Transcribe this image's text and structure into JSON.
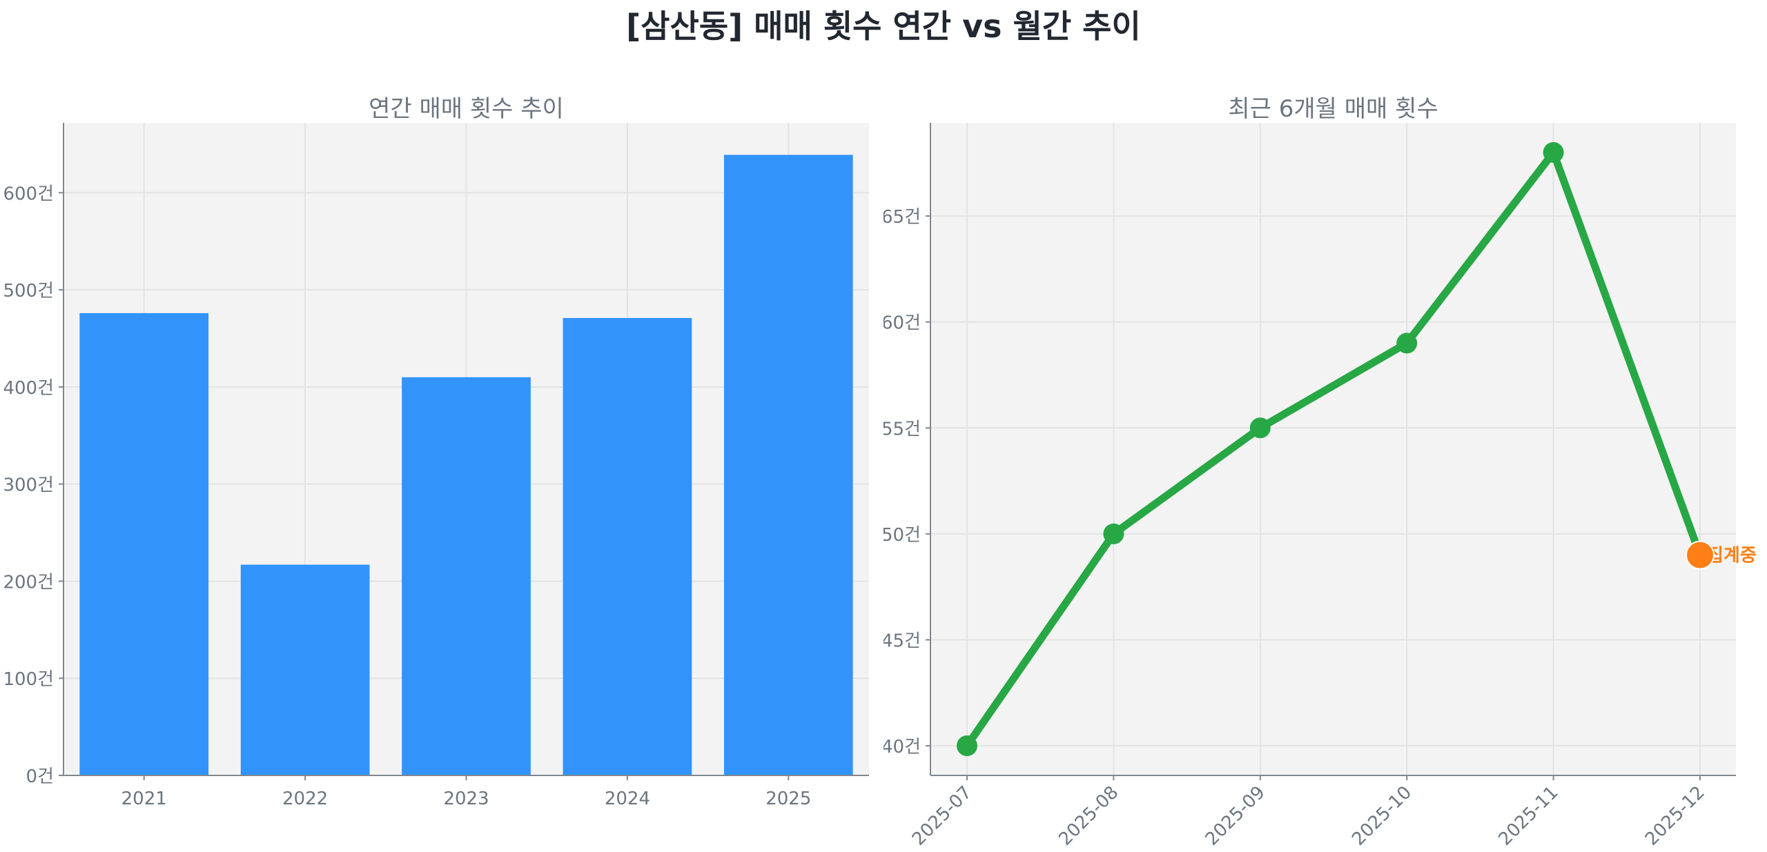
{
  "figure": {
    "title": "[삼산동] 매매 횟수 연간 vs 월간 추이"
  },
  "colors": {
    "bar": "#3293fb",
    "line": "#28a745",
    "highlight": "#fd7f16",
    "axis_text": "#6b7580",
    "plot_bg": "#f3f3f3",
    "grid": "#e3e3e3",
    "spine": "#7f8790"
  },
  "chart_data": [
    {
      "type": "bar",
      "title": "연간 매매 횟수 추이",
      "xlabel": "",
      "ylabel": "",
      "categories": [
        "2021",
        "2022",
        "2023",
        "2024",
        "2025"
      ],
      "values": [
        476,
        217,
        410,
        471,
        639
      ],
      "ylim": [
        0,
        672
      ],
      "yticks": [
        0,
        100,
        200,
        300,
        400,
        500,
        600
      ],
      "ytick_labels": [
        "0건",
        "100건",
        "200건",
        "300건",
        "400건",
        "500건",
        "600건"
      ],
      "grid": true,
      "legend": null
    },
    {
      "type": "line",
      "title": "최근 6개월 매매 횟수",
      "xlabel": "",
      "ylabel": "",
      "categories": [
        "2025-07",
        "2025-08",
        "2025-09",
        "2025-10",
        "2025-11",
        "2025-12"
      ],
      "values": [
        40,
        50,
        55,
        59,
        68,
        49
      ],
      "ylim": [
        38.6,
        69.4
      ],
      "yticks": [
        40,
        45,
        50,
        55,
        60,
        65
      ],
      "ytick_labels": [
        "40건",
        "45건",
        "50건",
        "55건",
        "60건",
        "65건"
      ],
      "grid": true,
      "legend": null,
      "annotations": [
        {
          "x": "2025-12",
          "y": 49,
          "text": "집계중",
          "color": "#fd7f16",
          "marker": "highlighted point"
        }
      ]
    }
  ]
}
